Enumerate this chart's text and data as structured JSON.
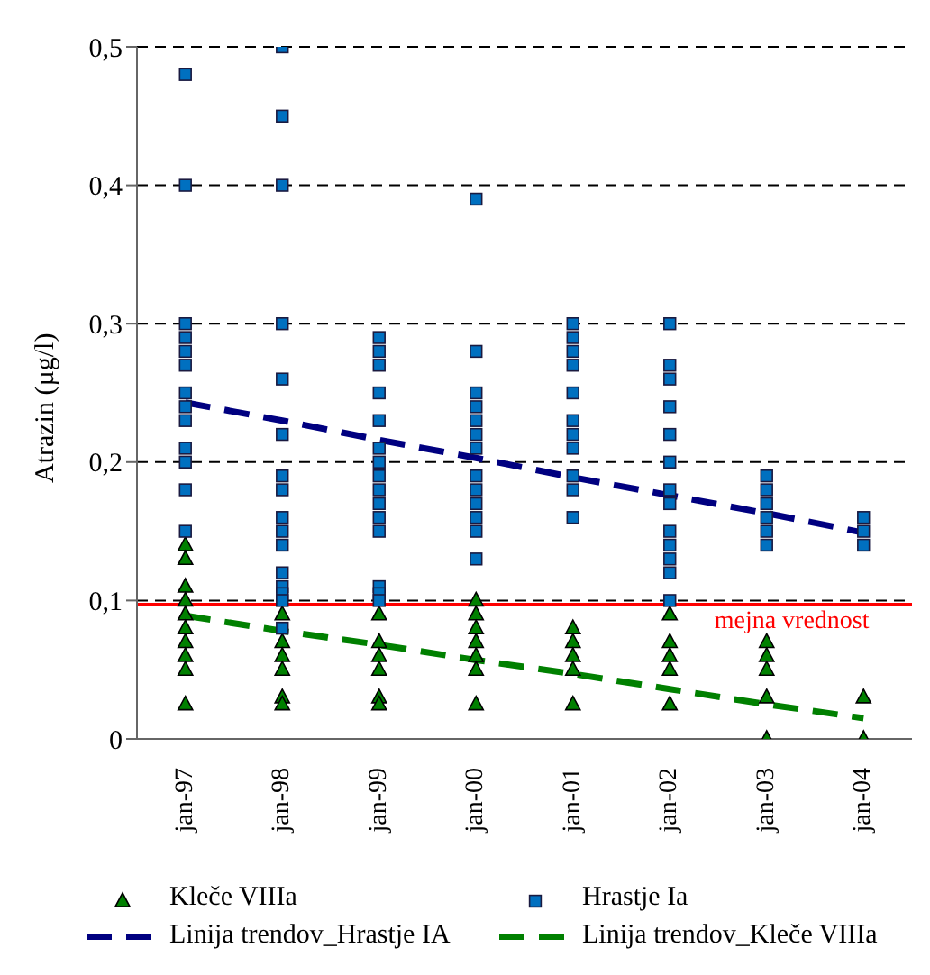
{
  "chart_data": {
    "type": "scatter",
    "ylabel": "Atrazin (µg/l)",
    "categories": [
      "jan-97",
      "jan-98",
      "jan-99",
      "jan-00",
      "jan-01",
      "jan-02",
      "jan-03",
      "jan-04"
    ],
    "ylim": [
      0,
      0.5
    ],
    "yticks": [
      0,
      {
        "value": 0.1,
        "label": "0,1"
      },
      {
        "value": 0.2,
        "label": "0,2"
      },
      {
        "value": 0.3,
        "label": "0,3"
      },
      {
        "value": 0.4,
        "label": "0,4"
      },
      {
        "value": 0.5,
        "label": "0,5"
      }
    ],
    "grid": "y",
    "legend": "bottom",
    "ref_lines": [
      {
        "axis": "y",
        "value": 0.097,
        "label": "mejna vrednost",
        "color": "#ff0000",
        "line_style": "solid"
      }
    ],
    "series": [
      {
        "name": "Kleče VIIIa",
        "marker": "triangle",
        "color": "#008000",
        "x": [
          "jan-97",
          "jan-97",
          "jan-97",
          "jan-97",
          "jan-97",
          "jan-97",
          "jan-97",
          "jan-97",
          "jan-97",
          "jan-97",
          "jan-98",
          "jan-98",
          "jan-98",
          "jan-98",
          "jan-98",
          "jan-98",
          "jan-98",
          "jan-99",
          "jan-99",
          "jan-99",
          "jan-99",
          "jan-99",
          "jan-99",
          "jan-00",
          "jan-00",
          "jan-00",
          "jan-00",
          "jan-00",
          "jan-00",
          "jan-00",
          "jan-01",
          "jan-01",
          "jan-01",
          "jan-01",
          "jan-01",
          "jan-02",
          "jan-02",
          "jan-02",
          "jan-02",
          "jan-02",
          "jan-03",
          "jan-03",
          "jan-03",
          "jan-03",
          "jan-03",
          "jan-04",
          "jan-04"
        ],
        "values": [
          0.14,
          0.13,
          0.11,
          0.1,
          0.09,
          0.08,
          0.07,
          0.06,
          0.05,
          0.025,
          0.09,
          null,
          0.07,
          0.06,
          0.05,
          0.03,
          0.025,
          0.09,
          0.07,
          0.06,
          0.05,
          0.03,
          0.025,
          0.1,
          0.09,
          0.08,
          0.07,
          0.06,
          0.05,
          0.025,
          0.08,
          0.07,
          0.06,
          0.05,
          0.025,
          0.09,
          0.07,
          0.06,
          0.05,
          0.025,
          0.07,
          0.06,
          0.05,
          0.03,
          0,
          0.03,
          0
        ]
      },
      {
        "name": "Hrastje Ia",
        "marker": "square",
        "color": "#0070c0",
        "x": [
          "jan-97",
          "jan-97",
          "jan-97",
          "jan-97",
          "jan-97",
          "jan-97",
          "jan-97",
          "jan-97",
          "jan-97",
          "jan-97",
          "jan-97",
          "jan-97",
          "jan-97",
          "jan-98",
          "jan-98",
          "jan-98",
          "jan-98",
          "jan-98",
          "jan-98",
          "jan-98",
          "jan-98",
          "jan-98",
          "jan-98",
          "jan-98",
          "jan-98",
          "jan-98",
          "jan-98",
          "jan-98",
          "jan-98",
          "jan-99",
          "jan-99",
          "jan-99",
          "jan-99",
          "jan-99",
          "jan-99",
          "jan-99",
          "jan-99",
          "jan-99",
          "jan-99",
          "jan-99",
          "jan-99",
          "jan-99",
          "jan-99",
          "jan-99",
          "jan-00",
          "jan-00",
          "jan-00",
          "jan-00",
          "jan-00",
          "jan-00",
          "jan-00",
          "jan-00",
          "jan-00",
          "jan-00",
          "jan-00",
          "jan-00",
          "jan-00",
          "jan-01",
          "jan-01",
          "jan-01",
          "jan-01",
          "jan-01",
          "jan-01",
          "jan-01",
          "jan-01",
          "jan-01",
          "jan-01",
          "jan-01",
          "jan-02",
          "jan-02",
          "jan-02",
          "jan-02",
          "jan-02",
          "jan-02",
          "jan-02",
          "jan-02",
          "jan-02",
          "jan-02",
          "jan-02",
          "jan-02",
          "jan-02",
          "jan-03",
          "jan-03",
          "jan-03",
          "jan-03",
          "jan-03",
          "jan-03",
          "jan-04",
          "jan-04",
          "jan-04"
        ],
        "values": [
          0.48,
          0.4,
          0.3,
          0.29,
          0.28,
          0.27,
          0.25,
          0.24,
          0.23,
          0.21,
          0.2,
          0.18,
          0.15,
          0.5,
          0.45,
          0.4,
          0.3,
          0.26,
          0.22,
          0.19,
          0.18,
          0.16,
          0.15,
          0.14,
          0.12,
          0.11,
          0.105,
          0.1,
          0.08,
          0.29,
          0.28,
          0.27,
          0.25,
          0.23,
          0.21,
          0.2,
          0.19,
          0.18,
          0.17,
          0.16,
          0.15,
          0.11,
          0.105,
          0.1,
          0.39,
          0.28,
          0.25,
          0.24,
          0.23,
          0.22,
          0.21,
          0.19,
          0.18,
          0.17,
          0.16,
          0.15,
          0.13,
          0.3,
          0.29,
          0.28,
          0.27,
          0.25,
          0.23,
          0.22,
          0.21,
          0.19,
          0.18,
          0.16,
          0.3,
          0.27,
          0.26,
          0.24,
          0.22,
          0.2,
          0.18,
          0.17,
          0.15,
          0.14,
          0.13,
          0.12,
          0.1,
          0.19,
          0.18,
          0.17,
          0.16,
          0.15,
          0.14,
          0.16,
          0.15,
          0.14
        ]
      },
      {
        "name": "Linija trendov_Hrastje IA",
        "type": "line",
        "line_style": "dashed",
        "color": "#000080",
        "values": [
          0.243,
          0.23,
          0.216,
          0.203,
          0.189,
          0.176,
          0.163,
          0.149
        ]
      },
      {
        "name": "Linija trendov_Kleče VIIIa",
        "type": "line",
        "line_style": "dashed",
        "color": "#008000",
        "values": [
          0.089,
          0.078,
          0.068,
          0.057,
          0.047,
          0.036,
          0.025,
          0.015
        ]
      }
    ]
  }
}
